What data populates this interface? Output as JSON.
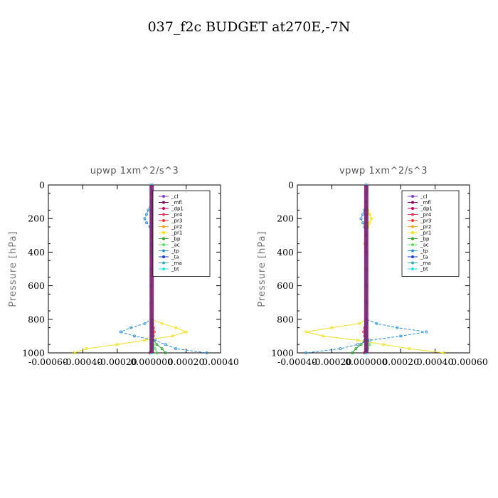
{
  "title": "037_f2c  BUDGET at270E,-7N",
  "chart_data": [
    {
      "type": "line",
      "title": "upwp   1xm^2/s^3",
      "ylabel": "Pressure [hPa]",
      "xlabel": "",
      "xlim": [
        -0.0006,
        0.0004
      ],
      "ylim": [
        1000,
        0
      ],
      "xtick_labels": [
        "-0.00060",
        "-0.00040",
        "-0.00020",
        "0.000000",
        "0.00020",
        "0.00040"
      ],
      "xticks": [
        -0.0006,
        -0.0004,
        -0.0002,
        0.0,
        0.0002,
        0.0004
      ],
      "ytick_labels": [
        "0",
        "200",
        "400",
        "600",
        "800",
        "1000"
      ],
      "yticks": [
        0,
        200,
        400,
        600,
        800,
        1000
      ],
      "legend_position": "top-right",
      "pressure_levels": [
        0,
        50,
        100,
        150,
        175,
        200,
        225,
        250,
        300,
        350,
        400,
        500,
        600,
        700,
        800,
        825,
        850,
        875,
        900,
        925,
        950,
        975,
        1000
      ],
      "series": [
        {
          "name": "_cl",
          "color": "#8040c0",
          "values": [
            0,
            0,
            0,
            0,
            0,
            0,
            0,
            0,
            0,
            0,
            0,
            0,
            0,
            0,
            0,
            0,
            0,
            0,
            0,
            0,
            0,
            0,
            0
          ]
        },
        {
          "name": "_mfl",
          "color": "#800060",
          "values": [
            0,
            0,
            0,
            0,
            0,
            0,
            0,
            0,
            0,
            0,
            0,
            0,
            0,
            0,
            0,
            0,
            0,
            0,
            0,
            0,
            0,
            0,
            0
          ]
        },
        {
          "name": "_dp1",
          "color": "#c00060",
          "values": [
            0,
            0,
            0,
            0,
            0,
            0,
            0,
            0,
            0,
            0,
            0,
            0,
            0,
            0,
            0,
            0,
            0,
            0,
            0,
            0,
            0,
            0,
            -1e-05
          ]
        },
        {
          "name": "_pr4",
          "color": "#e04060",
          "values": [
            0,
            0,
            0,
            0,
            0,
            0,
            0,
            0,
            0,
            0,
            0,
            0,
            0,
            0,
            0,
            0,
            0,
            0,
            0,
            0,
            0,
            0,
            0
          ]
        },
        {
          "name": "_pr3",
          "color": "#ff3030",
          "values": [
            0,
            0,
            0,
            0,
            0,
            0,
            0,
            0,
            0,
            0,
            0,
            0,
            0,
            0,
            0,
            5e-06,
            1e-05,
            1.5e-05,
            1e-05,
            5e-06,
            0,
            0,
            0
          ]
        },
        {
          "name": "_pr2",
          "color": "#ffa020",
          "values": [
            0,
            0,
            0,
            0,
            0,
            0,
            0,
            0,
            0,
            0,
            0,
            0,
            0,
            0,
            0,
            0,
            0,
            0,
            0,
            0,
            0,
            0,
            0
          ]
        },
        {
          "name": "_pr1",
          "color": "#f0e020",
          "values": [
            0,
            0,
            0,
            1e-05,
            2e-05,
            3e-05,
            2e-05,
            1e-05,
            0,
            0,
            0,
            0,
            0,
            0,
            0,
            6e-05,
            0.00014,
            0.0002,
            0.00012,
            -4e-05,
            -0.0002,
            -0.00038,
            -0.00045
          ]
        },
        {
          "name": "_bp",
          "color": "#30a030",
          "values": [
            0,
            0,
            0,
            0,
            0,
            0,
            0,
            0,
            0,
            0,
            0,
            0,
            0,
            0,
            0,
            0,
            0,
            0,
            5e-06,
            1e-05,
            3e-05,
            6e-05,
            8e-05
          ]
        },
        {
          "name": "_ac",
          "color": "#60e060",
          "values": [
            0,
            0,
            0,
            0,
            0,
            0,
            0,
            0,
            0,
            0,
            0,
            0,
            0,
            0,
            0,
            0,
            0,
            0,
            0,
            0,
            1e-05,
            2e-05,
            3e-05
          ]
        },
        {
          "name": "_tp",
          "color": "#3090d0",
          "values": [
            0,
            0,
            0,
            -2e-05,
            -3e-05,
            -4e-05,
            -3e-05,
            -1e-05,
            0,
            0,
            0,
            0,
            0,
            0,
            0,
            -4e-05,
            -0.00012,
            -0.00018,
            -0.0001,
            2e-05,
            8e-05,
            0.00014,
            0.00032
          ]
        },
        {
          "name": "_ta",
          "color": "#2040c0",
          "values": [
            0,
            0,
            0,
            0,
            0,
            0,
            0,
            0,
            0,
            0,
            0,
            0,
            0,
            0,
            0,
            0,
            0,
            0,
            0,
            0,
            0,
            0,
            0
          ]
        },
        {
          "name": "_ma",
          "color": "#30b0b0",
          "values": [
            0,
            0,
            0,
            0,
            0,
            0,
            0,
            0,
            0,
            0,
            0,
            0,
            0,
            0,
            0,
            0,
            0,
            0,
            0,
            0,
            0,
            0,
            0
          ]
        },
        {
          "name": "_bt",
          "color": "#20e0e0",
          "values": [
            0,
            0,
            0,
            0,
            0,
            0,
            0,
            0,
            0,
            0,
            0,
            0,
            0,
            0,
            0,
            0,
            0,
            0,
            0,
            0,
            0,
            0,
            0
          ]
        }
      ]
    },
    {
      "type": "line",
      "title": "vpwp   1xm^2/s^3",
      "ylabel": "Pressure [hPa]",
      "xlabel": "",
      "xlim": [
        -0.0004,
        0.0006
      ],
      "ylim": [
        1000,
        0
      ],
      "xtick_labels": [
        "-0.00040",
        "-0.00020",
        "0.000000",
        "0.00020",
        "0.00040",
        "0.00060"
      ],
      "xticks": [
        -0.0004,
        -0.0002,
        0.0,
        0.0002,
        0.0004,
        0.0006
      ],
      "ytick_labels": [
        "0",
        "200",
        "400",
        "600",
        "800",
        "1000"
      ],
      "yticks": [
        0,
        200,
        400,
        600,
        800,
        1000
      ],
      "legend_position": "top-right",
      "pressure_levels": [
        0,
        50,
        100,
        150,
        175,
        200,
        225,
        250,
        300,
        350,
        400,
        500,
        600,
        700,
        800,
        825,
        850,
        875,
        900,
        925,
        950,
        975,
        1000
      ],
      "series": [
        {
          "name": "_cl",
          "color": "#8040c0",
          "values": [
            0,
            0,
            0,
            0,
            0,
            0,
            0,
            0,
            0,
            0,
            0,
            0,
            0,
            0,
            0,
            0,
            0,
            0,
            0,
            0,
            0,
            0,
            0
          ]
        },
        {
          "name": "_mfl",
          "color": "#800060",
          "values": [
            0,
            0,
            0,
            0,
            0,
            0,
            0,
            0,
            0,
            0,
            0,
            0,
            0,
            0,
            0,
            0,
            0,
            0,
            0,
            0,
            0,
            0,
            0
          ]
        },
        {
          "name": "_dp1",
          "color": "#c00060",
          "values": [
            0,
            0,
            0,
            0,
            0,
            0,
            0,
            0,
            0,
            0,
            0,
            0,
            0,
            0,
            0,
            0,
            0,
            0,
            0,
            0,
            0,
            0,
            -1e-05
          ]
        },
        {
          "name": "_pr4",
          "color": "#e04060",
          "values": [
            0,
            0,
            0,
            0,
            0,
            0,
            0,
            0,
            0,
            0,
            0,
            0,
            0,
            0,
            0,
            0,
            0,
            0,
            0,
            0,
            0,
            0,
            0
          ]
        },
        {
          "name": "_pr3",
          "color": "#ff3030",
          "values": [
            0,
            0,
            0,
            0,
            0,
            0,
            0,
            0,
            0,
            0,
            0,
            0,
            0,
            0,
            0,
            0,
            -1e-05,
            -1.5e-05,
            -1e-05,
            -5e-06,
            0,
            0,
            0
          ]
        },
        {
          "name": "_pr2",
          "color": "#ffa020",
          "values": [
            0,
            0,
            0,
            0,
            0,
            0,
            0,
            0,
            0,
            0,
            0,
            0,
            0,
            0,
            0,
            0,
            0,
            0,
            0,
            0,
            0,
            0,
            0
          ]
        },
        {
          "name": "_pr1",
          "color": "#f0e020",
          "values": [
            0,
            0,
            0,
            1e-05,
            2e-05,
            3e-05,
            2e-05,
            1e-05,
            0,
            -1e-05,
            0,
            0,
            0,
            0,
            0,
            -4e-05,
            -0.0002,
            -0.00035,
            -0.00025,
            -5e-05,
            0.0001,
            0.00025,
            0.00045
          ]
        },
        {
          "name": "_bp",
          "color": "#30a030",
          "values": [
            0,
            0,
            0,
            0,
            0,
            0,
            0,
            0,
            0,
            0,
            0,
            0,
            0,
            0,
            0,
            0,
            0,
            0,
            -5e-06,
            -1e-05,
            -3e-05,
            -6e-05,
            -8e-05
          ]
        },
        {
          "name": "_ac",
          "color": "#60e060",
          "values": [
            0,
            0,
            0,
            0,
            0,
            0,
            0,
            0,
            0,
            0,
            0,
            0,
            0,
            0,
            0,
            0,
            0,
            0,
            0,
            1e-05,
            2e-05,
            1e-05,
            0
          ]
        },
        {
          "name": "_tp",
          "color": "#3090d0",
          "values": [
            0,
            0,
            0,
            -1e-05,
            -2e-05,
            -3e-05,
            -2e-05,
            -1e-05,
            0,
            0,
            0,
            0,
            0,
            0,
            0,
            6e-05,
            0.00018,
            0.00035,
            0.0002,
            2e-05,
            -5e-05,
            -0.00015,
            -0.00035
          ]
        },
        {
          "name": "_ta",
          "color": "#2040c0",
          "values": [
            0,
            0,
            0,
            0,
            0,
            0,
            0,
            0,
            0,
            0,
            0,
            0,
            0,
            0,
            0,
            0,
            0,
            0,
            0,
            0,
            0,
            0,
            0
          ]
        },
        {
          "name": "_ma",
          "color": "#30b0b0",
          "values": [
            0,
            0,
            0,
            0,
            0,
            0,
            0,
            0,
            0,
            0,
            0,
            0,
            0,
            0,
            0,
            0,
            0,
            0,
            0,
            0,
            0,
            0,
            0
          ]
        },
        {
          "name": "_bt",
          "color": "#20e0e0",
          "values": [
            0,
            0,
            0,
            0,
            0,
            0,
            0,
            0,
            0,
            0,
            0,
            0,
            0,
            0,
            0,
            0,
            0,
            0,
            0,
            0,
            0,
            0,
            0
          ]
        }
      ]
    }
  ]
}
